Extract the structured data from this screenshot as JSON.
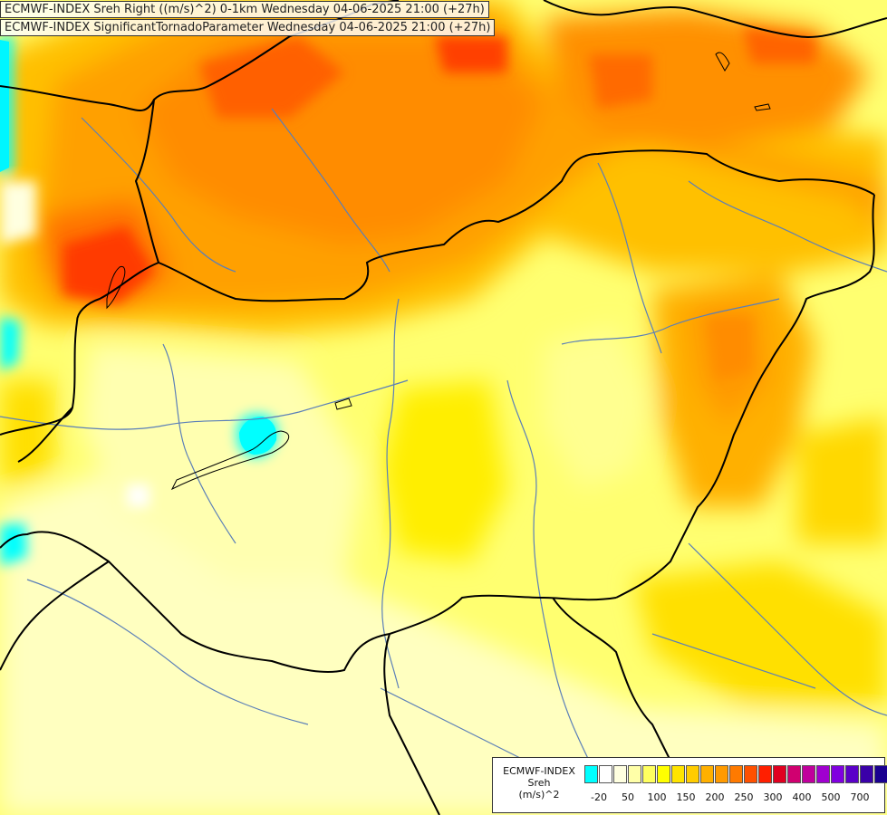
{
  "titles": {
    "line1": "ECMWF-INDEX Sreh Right ((m/s)^2) 0-1km Wednesday 04-06-2025 21:00 (+27h)",
    "line2": "ECMWF-INDEX SignificantTornadoParameter Wednesday 04-06-2025 21:00 (+27h)"
  },
  "legend": {
    "model": "ECMWF-INDEX",
    "param": "Sreh",
    "unit": "(m/s)^2",
    "colors": [
      "#00ffff",
      "#ffffff",
      "#ffffe0",
      "#ffffa8",
      "#ffff60",
      "#ffff00",
      "#ffe400",
      "#ffcc00",
      "#ffb000",
      "#ff9a00",
      "#ff7a00",
      "#ff5000",
      "#ff1f00",
      "#e00020",
      "#d00070",
      "#c0009c",
      "#a000d0",
      "#8000e0",
      "#5a00c8",
      "#3a00a8",
      "#1a0090",
      "#000070"
    ],
    "ticks": [
      "-20",
      "50",
      "100",
      "150",
      "200",
      "250",
      "300",
      "400",
      "500",
      "700"
    ]
  },
  "colors": {
    "background": "#ffff8a",
    "border": "#000000",
    "river": "#5b7fb8"
  }
}
